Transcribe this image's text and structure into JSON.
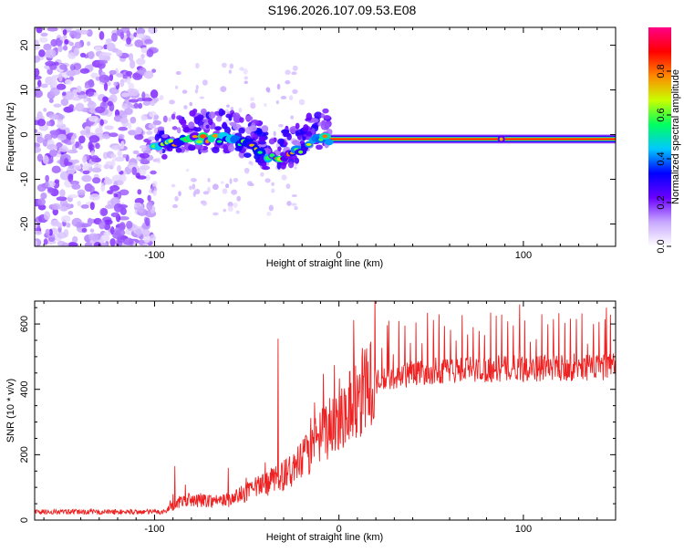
{
  "title": "S196.2026.107.09.53.E08",
  "chart_data": [
    {
      "type": "heatmap",
      "title": "S196.2026.107.09.53.E08",
      "xlabel": "Height of straight line (km)",
      "ylabel": "Frequency (Hz)",
      "xlim": [
        -165,
        150
      ],
      "ylim": [
        -25,
        24
      ],
      "xticks": [
        -100,
        0,
        100
      ],
      "yticks": [
        -20,
        -10,
        0,
        10,
        20
      ],
      "colorbar": {
        "label": "Normalized spectral amplitude",
        "range": [
          0,
          1
        ],
        "ticks": [
          0,
          0.2,
          0.4,
          0.6,
          0.8
        ],
        "tick_labels": [
          "0.0",
          "0.2",
          "0.4",
          "0.6",
          "0.8"
        ],
        "colormap": [
          "#ffffff",
          "#c8a8ff",
          "#6a00ff",
          "#0000ff",
          "#00c8ff",
          "#00ff60",
          "#c8ff00",
          "#ff8800",
          "#ff0000",
          "#ff0088"
        ]
      },
      "ridge": {
        "description_points": [
          {
            "x": -100,
            "y": -3
          },
          {
            "x": -80,
            "y": -1
          },
          {
            "x": -60,
            "y": -1
          },
          {
            "x": -45,
            "y": -3
          },
          {
            "x": -40,
            "y": -5
          },
          {
            "x": -30,
            "y": -5
          },
          {
            "x": -20,
            "y": -3
          },
          {
            "x": -10,
            "y": -1
          },
          {
            "x": 0,
            "y": -1
          },
          {
            "x": 150,
            "y": -1
          }
        ]
      }
    },
    {
      "type": "line",
      "xlabel": "Height of straight line (km)",
      "ylabel": "SNR (10 * v/v)",
      "xlim": [
        -165,
        150
      ],
      "ylim": [
        0,
        670
      ],
      "xticks": [
        -100,
        0,
        100
      ],
      "yticks": [
        0,
        200,
        400,
        600
      ],
      "color": "#ee2222",
      "trend": [
        {
          "x": -165,
          "y": 25
        },
        {
          "x": -95,
          "y": 25
        },
        {
          "x": -85,
          "y": 60
        },
        {
          "x": -60,
          "y": 60
        },
        {
          "x": -40,
          "y": 110
        },
        {
          "x": -25,
          "y": 150
        },
        {
          "x": -10,
          "y": 250
        },
        {
          "x": 0,
          "y": 320
        },
        {
          "x": 10,
          "y": 380
        },
        {
          "x": 20,
          "y": 420
        },
        {
          "x": 40,
          "y": 450
        },
        {
          "x": 60,
          "y": 460
        },
        {
          "x": 100,
          "y": 465
        },
        {
          "x": 150,
          "y": 470
        }
      ],
      "peaks": [
        {
          "x": -89,
          "y": 165
        },
        {
          "x": -60,
          "y": 160
        },
        {
          "x": -33,
          "y": 555
        },
        {
          "x": 15,
          "y": 525
        },
        {
          "x": 27,
          "y": 610
        },
        {
          "x": 98,
          "y": 660
        },
        {
          "x": 145,
          "y": 650
        }
      ]
    }
  ]
}
